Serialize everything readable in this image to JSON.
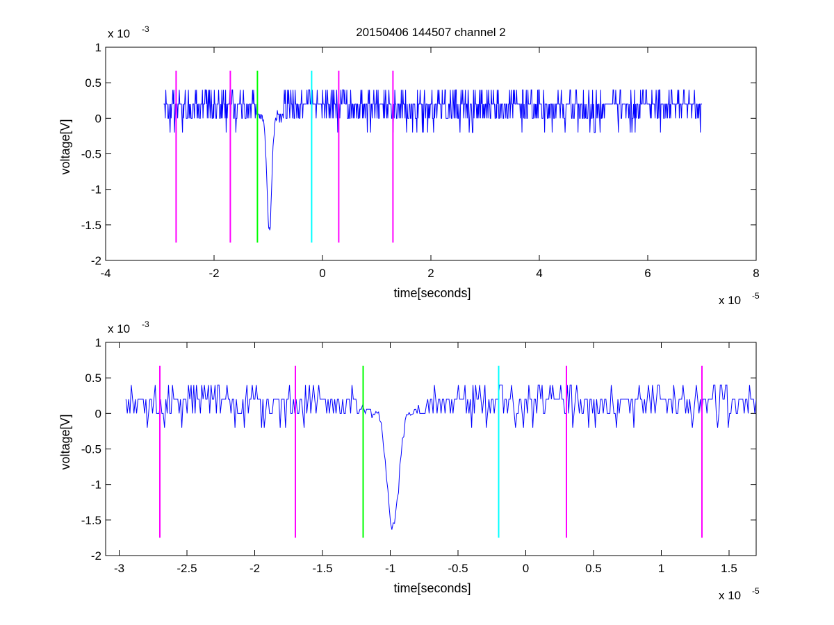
{
  "title": "20150406 144507 channel 2",
  "colors": {
    "signal": "#0000ff",
    "magenta_marker": "#ff00ff",
    "green_marker": "#00ff00",
    "cyan_marker": "#00ffff",
    "axes": "#000000"
  },
  "chart_data": [
    {
      "type": "line",
      "title": "20150406 144507 channel 2",
      "xlabel": "time[seconds]",
      "ylabel": "voltage[V]",
      "x_exponent_label": "x 10",
      "x_exponent": "-5",
      "y_exponent_label": "x 10",
      "y_exponent": "-3",
      "xlim": [
        -4,
        8
      ],
      "ylim": [
        -2,
        1
      ],
      "xticks": [
        -4,
        -2,
        0,
        2,
        4,
        6,
        8
      ],
      "xtick_labels": [
        "-4",
        "-2",
        "0",
        "2",
        "4",
        "6",
        "8"
      ],
      "yticks": [
        1,
        0.5,
        0,
        -0.5,
        -1,
        -1.5,
        -2
      ],
      "ytick_labels": [
        "1",
        "0.5",
        "0",
        "-0.5",
        "-1",
        "-1.5",
        "-2"
      ],
      "grid": false,
      "signal_range_x": [
        -2.93,
        7.0
      ],
      "signal_baseline_levels": [
        0,
        0.2,
        0.4
      ],
      "spike": {
        "x": -0.98,
        "min_y": -1.6
      },
      "markers": [
        {
          "x": -2.7,
          "color": "magenta",
          "ymin": -1.75,
          "ymax": 0.67
        },
        {
          "x": -1.7,
          "color": "magenta",
          "ymin": -1.75,
          "ymax": 0.67
        },
        {
          "x": -1.2,
          "color": "green",
          "ymin": -1.75,
          "ymax": 0.67
        },
        {
          "x": -0.2,
          "color": "cyan",
          "ymin": -1.75,
          "ymax": 0.67
        },
        {
          "x": 0.3,
          "color": "magenta",
          "ymin": -1.75,
          "ymax": 0.67
        },
        {
          "x": 1.3,
          "color": "magenta",
          "ymin": -1.75,
          "ymax": 0.67
        }
      ]
    },
    {
      "type": "line",
      "title": "",
      "xlabel": "time[seconds]",
      "ylabel": "voltage[V]",
      "x_exponent_label": "x 10",
      "x_exponent": "-5",
      "y_exponent_label": "x 10",
      "y_exponent": "-3",
      "xlim": [
        -3.1,
        1.7
      ],
      "ylim": [
        -2,
        1
      ],
      "xticks": [
        -3,
        -2.5,
        -2,
        -1.5,
        -1,
        -0.5,
        0,
        0.5,
        1,
        1.5
      ],
      "xtick_labels": [
        "-3",
        "-2.5",
        "-2",
        "-1.5",
        "-1",
        "-0.5",
        "0",
        "0.5",
        "1",
        "1.5"
      ],
      "yticks": [
        1,
        0.5,
        0,
        -0.5,
        -1,
        -1.5,
        -2
      ],
      "ytick_labels": [
        "1",
        "0.5",
        "0",
        "-0.5",
        "-1",
        "-1.5",
        "-2"
      ],
      "grid": false,
      "signal_range_x": [
        -2.95,
        1.7
      ],
      "signal_baseline_levels": [
        0,
        0.2,
        0.4
      ],
      "spike": {
        "x": -0.98,
        "min_y": -1.6
      },
      "markers": [
        {
          "x": -2.7,
          "color": "magenta",
          "ymin": -1.75,
          "ymax": 0.67
        },
        {
          "x": -1.7,
          "color": "magenta",
          "ymin": -1.75,
          "ymax": 0.67
        },
        {
          "x": -1.2,
          "color": "green",
          "ymin": -1.75,
          "ymax": 0.67
        },
        {
          "x": -0.2,
          "color": "cyan",
          "ymin": -1.75,
          "ymax": 0.67
        },
        {
          "x": 0.3,
          "color": "magenta",
          "ymin": -1.75,
          "ymax": 0.67
        },
        {
          "x": 1.3,
          "color": "magenta",
          "ymin": -1.75,
          "ymax": 0.67
        }
      ]
    }
  ]
}
